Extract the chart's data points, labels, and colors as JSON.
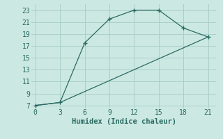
{
  "line1_x": [
    0,
    3,
    6,
    9,
    12,
    15,
    18,
    21
  ],
  "line1_y": [
    7,
    7.5,
    17.5,
    21.5,
    23,
    23,
    20,
    18.5
  ],
  "line2_x": [
    0,
    3,
    21
  ],
  "line2_y": [
    7,
    7.5,
    18.5
  ],
  "color": "#2a6b62",
  "bg_color": "#cce8e3",
  "grid_color": "#aacfc9",
  "xlabel": "Humidex (Indice chaleur)",
  "xlim": [
    -0.5,
    22
  ],
  "ylim": [
    6.5,
    24
  ],
  "xticks": [
    0,
    3,
    6,
    9,
    12,
    15,
    18,
    21
  ],
  "yticks": [
    7,
    9,
    11,
    13,
    15,
    17,
    19,
    21,
    23
  ],
  "font_size": 7.5,
  "marker": "+"
}
